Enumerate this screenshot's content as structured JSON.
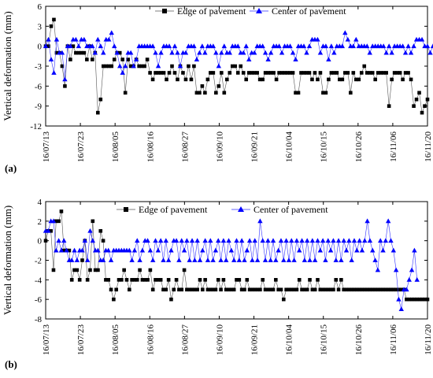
{
  "chart_data": [
    {
      "type": "line",
      "panel_label": "(a)",
      "ylabel": "Vertical deformation (mm)",
      "xlabel": "",
      "ylim": [
        -12,
        6
      ],
      "yticks": [
        -12,
        -9,
        -6,
        -3,
        0,
        3,
        6
      ],
      "x_tick_labels": [
        "16/07/13",
        "16/07/23",
        "16/08/05",
        "16/08/16",
        "16/08/27",
        "16/09/10",
        "16/09/21",
        "16/10/04",
        "16/10/15",
        "16/10/26",
        "16/11/06",
        "16/11/20"
      ],
      "grid": false,
      "legend_position": "top",
      "series": [
        {
          "name": "Edge of pavement",
          "marker": "square",
          "color": "#000000",
          "values": [
            0,
            0,
            3,
            4,
            -1,
            -1,
            -3,
            -6,
            0,
            -2,
            0,
            -1,
            -1,
            -1,
            -1,
            -2,
            0,
            -2,
            -1,
            -10,
            -8,
            -3,
            -3,
            -3,
            -3,
            -2,
            -1,
            -1,
            -2,
            -7,
            -2,
            -3,
            -3,
            -2,
            -3,
            -3,
            -3,
            -2,
            -4,
            -5,
            -4,
            -4,
            -4,
            -4,
            -5,
            -4,
            -3,
            -4,
            -5,
            -3,
            -4,
            -5,
            -3,
            -5,
            -3,
            -7,
            -7,
            -6,
            -7,
            -5,
            -4,
            -4,
            -7,
            -6,
            -4,
            -7,
            -5,
            -4,
            -3,
            -3,
            -4,
            -3,
            -4,
            -5,
            -4,
            -4,
            -4,
            -4,
            -5,
            -5,
            -4,
            -4,
            -4,
            -4,
            -5,
            -4,
            -4,
            -4,
            -4,
            -4,
            -4,
            -7,
            -7,
            -4,
            -4,
            -4,
            -4,
            -5,
            -4,
            -5,
            -4,
            -7,
            -7,
            -5,
            -4,
            -4,
            -4,
            -5,
            -5,
            -4,
            -4,
            -7,
            -4,
            -5,
            -5,
            -4,
            -3,
            -4,
            -4,
            -4,
            -5,
            -4,
            -4,
            -4,
            -4,
            -9,
            -5,
            -4,
            -4,
            -4,
            -5,
            -4,
            -4,
            -5,
            -9,
            -8,
            -7,
            -10,
            -9,
            -8
          ]
        },
        {
          "name": "Center of pavement",
          "marker": "triangle",
          "color": "#0000ff",
          "values": [
            0,
            1,
            -2,
            -4,
            1,
            -1,
            -1,
            -5,
            0,
            0,
            1,
            1,
            0,
            1,
            1,
            0,
            0,
            0,
            -1,
            1,
            0,
            -1,
            1,
            1,
            2,
            0,
            -1,
            -3,
            -4,
            -3,
            -1,
            -1,
            -3,
            -2,
            0,
            0,
            0,
            0,
            0,
            0,
            -1,
            -3,
            -1,
            0,
            0,
            0,
            -1,
            0,
            -1,
            -3,
            -1,
            -1,
            0,
            0,
            0,
            -2,
            -1,
            0,
            -1,
            0,
            0,
            0,
            -1,
            -3,
            -1,
            0,
            -1,
            -1,
            0,
            0,
            0,
            -1,
            -1,
            0,
            -2,
            -1,
            -1,
            0,
            0,
            0,
            -1,
            -2,
            -1,
            0,
            0,
            0,
            -1,
            0,
            0,
            0,
            -1,
            -2,
            0,
            0,
            0,
            -1,
            0,
            1,
            1,
            1,
            -1,
            0,
            0,
            -2,
            0,
            -1,
            0,
            0,
            0,
            2,
            1,
            0,
            0,
            1,
            0,
            0,
            0,
            0,
            -1,
            0,
            0,
            0,
            0,
            0,
            -1,
            0,
            -1,
            0,
            0,
            0,
            0,
            -1,
            0,
            -1,
            0,
            1,
            1,
            1,
            0,
            0,
            -1,
            0,
            1,
            1,
            1,
            0,
            -2,
            -1,
            0,
            -1,
            -1,
            -1
          ]
        }
      ]
    },
    {
      "type": "line",
      "panel_label": "(b)",
      "ylabel": "Vertical deformation (mm)",
      "xlabel": "",
      "ylim": [
        -8,
        4
      ],
      "yticks": [
        -8,
        -6,
        -4,
        -2,
        0,
        2,
        4
      ],
      "x_tick_labels": [
        "16/07/13",
        "16/07/23",
        "16/08/05",
        "16/08/16",
        "16/08/27",
        "16/09/10",
        "16/09/21",
        "16/10/04",
        "16/10/15",
        "16/10/26",
        "16/11/06",
        "16/11/20"
      ],
      "grid": false,
      "legend_position": "top",
      "series": [
        {
          "name": "Edge of pavement",
          "marker": "square",
          "color": "#000000",
          "values": [
            0,
            1,
            1,
            -3,
            2,
            2,
            3,
            -1,
            -1,
            -1,
            -4,
            -3,
            -3,
            -4,
            -2,
            0,
            -4,
            -3,
            2,
            -3,
            -3,
            1,
            0,
            -4,
            -4,
            -5,
            -6,
            -5,
            -4,
            -4,
            -3,
            -4,
            -5,
            -4,
            -4,
            -4,
            -3,
            -4,
            -4,
            -4,
            -3,
            -5,
            -4,
            -4,
            -4,
            -5,
            -5,
            -4,
            -6,
            -5,
            -4,
            -5,
            -5,
            -3,
            -5,
            -5,
            -5,
            -5,
            -5,
            -4,
            -5,
            -4,
            -5,
            -5,
            -5,
            -5,
            -4,
            -5,
            -4,
            -5,
            -5,
            -5,
            -5,
            -4,
            -4,
            -5,
            -5,
            -4,
            -5,
            -5,
            -5,
            -5,
            -5,
            -4,
            -5,
            -5,
            -5,
            -5,
            -4,
            -5,
            -5,
            -6,
            -5,
            -5,
            -5,
            -5,
            -5,
            -4,
            -5,
            -5,
            -5,
            -4,
            -5,
            -5,
            -4,
            -5,
            -5,
            -5,
            -5,
            -5,
            -5,
            -4,
            -5,
            -4,
            -5,
            -5,
            -5,
            -5,
            -5,
            -5,
            -5,
            -5,
            -5,
            -5,
            -5,
            -5,
            -5,
            -5,
            -5,
            -5,
            -5,
            -5,
            -5,
            -5,
            -5,
            -5,
            -5,
            -5,
            -6,
            -6,
            -6,
            -6,
            -6,
            -6,
            -6,
            -6,
            -6
          ]
        },
        {
          "name": "Center of pavement",
          "marker": "triangle",
          "color": "#0000ff",
          "values": [
            1,
            1,
            2,
            2,
            -1,
            0,
            -1,
            0,
            -1,
            -2,
            -2,
            -1,
            -2,
            -1,
            -1,
            0,
            -2,
            1,
            0,
            -1,
            -1,
            -2,
            -2,
            -1,
            -1,
            -2,
            -1,
            -1,
            -1,
            -1,
            -1,
            -1,
            -1,
            -2,
            -1,
            0,
            -2,
            -1,
            0,
            0,
            -1,
            -2,
            0,
            -1,
            0,
            -2,
            0,
            -2,
            -1,
            0,
            0,
            -2,
            0,
            -1,
            0,
            -2,
            0,
            -2,
            0,
            -2,
            -1,
            0,
            -2,
            0,
            -2,
            -1,
            0,
            -2,
            0,
            -2,
            0,
            -1,
            -2,
            0,
            -2,
            0,
            -2,
            -1,
            0,
            -2,
            0,
            -2,
            2,
            0,
            -2,
            0,
            -2,
            0,
            -2,
            -1,
            0,
            -2,
            0,
            -2,
            0,
            -2,
            0,
            -1,
            0,
            -2,
            0,
            -2,
            0,
            -2,
            0,
            -1,
            0,
            -2,
            0,
            -1,
            0,
            -2,
            0,
            -2,
            0,
            -1,
            0,
            -2,
            0,
            -1,
            0,
            -1,
            0,
            2,
            0,
            -1,
            -2,
            -3,
            0,
            -1,
            0,
            2,
            0,
            -1,
            -3,
            -6,
            -7,
            -5,
            -5,
            -4,
            -3,
            -1,
            -4
          ]
        }
      ]
    }
  ]
}
